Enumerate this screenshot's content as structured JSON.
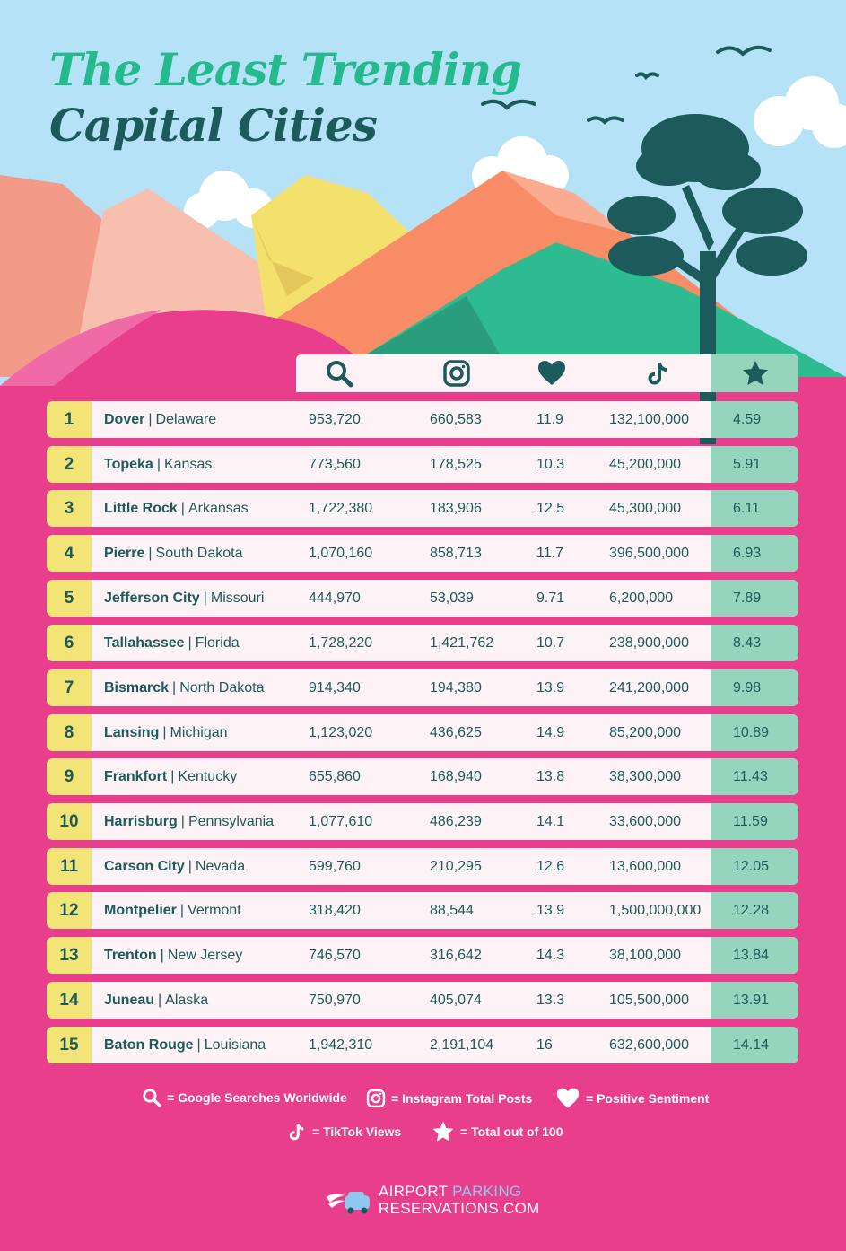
{
  "title": {
    "line1": "The Least Trending",
    "line2": "Capital Cities"
  },
  "header_icons": [
    "search-icon",
    "instagram-icon",
    "heart-icon",
    "tiktok-icon",
    "star-icon"
  ],
  "colors": {
    "sky": "#b5e2f7",
    "pink_background": "#e83e8c",
    "rank_yellow": "#f3e477",
    "score_green": "#96d4bd",
    "row_background": "#fdf3f6",
    "title_green": "#25b98e",
    "title_dark": "#1c5a5c"
  },
  "rows": [
    {
      "rank": "1",
      "city": "Dover",
      "state": "Delaware",
      "searches": "953,720",
      "instagram": "660,583",
      "sentiment": "11.9",
      "tiktok": "132,100,000",
      "score": "4.59"
    },
    {
      "rank": "2",
      "city": "Topeka",
      "state": "Kansas",
      "searches": "773,560",
      "instagram": "178,525",
      "sentiment": "10.3",
      "tiktok": "45,200,000",
      "score": "5.91"
    },
    {
      "rank": "3",
      "city": "Little Rock",
      "state": "Arkansas",
      "searches": "1,722,380",
      "instagram": "183,906",
      "sentiment": "12.5",
      "tiktok": "45,300,000",
      "score": "6.11"
    },
    {
      "rank": "4",
      "city": "Pierre",
      "state": "South Dakota",
      "searches": "1,070,160",
      "instagram": "858,713",
      "sentiment": "11.7",
      "tiktok": "396,500,000",
      "score": "6.93"
    },
    {
      "rank": "5",
      "city": "Jefferson City",
      "state": "Missouri",
      "searches": "444,970",
      "instagram": "53,039",
      "sentiment": "9.71",
      "tiktok": "6,200,000",
      "score": "7.89"
    },
    {
      "rank": "6",
      "city": "Tallahassee",
      "state": "Florida",
      "searches": "1,728,220",
      "instagram": "1,421,762",
      "sentiment": "10.7",
      "tiktok": "238,900,000",
      "score": "8.43"
    },
    {
      "rank": "7",
      "city": "Bismarck",
      "state": "North Dakota",
      "searches": "914,340",
      "instagram": "194,380",
      "sentiment": "13.9",
      "tiktok": "241,200,000",
      "score": "9.98"
    },
    {
      "rank": "8",
      "city": "Lansing",
      "state": "Michigan",
      "searches": "1,123,020",
      "instagram": "436,625",
      "sentiment": "14.9",
      "tiktok": "85,200,000",
      "score": "10.89"
    },
    {
      "rank": "9",
      "city": "Frankfort",
      "state": "Kentucky",
      "searches": "655,860",
      "instagram": "168,940",
      "sentiment": "13.8",
      "tiktok": "38,300,000",
      "score": "11.43"
    },
    {
      "rank": "10",
      "city": "Harrisburg",
      "state": "Pennsylvania",
      "searches": "1,077,610",
      "instagram": "486,239",
      "sentiment": "14.1",
      "tiktok": "33,600,000",
      "score": "11.59"
    },
    {
      "rank": "11",
      "city": "Carson City",
      "state": "Nevada",
      "searches": "599,760",
      "instagram": "210,295",
      "sentiment": "12.6",
      "tiktok": "13,600,000",
      "score": "12.05"
    },
    {
      "rank": "12",
      "city": "Montpelier",
      "state": "Vermont",
      "searches": "318,420",
      "instagram": "88,544",
      "sentiment": "13.9",
      "tiktok": "1,500,000,000",
      "score": "12.28"
    },
    {
      "rank": "13",
      "city": "Trenton",
      "state": "New Jersey",
      "searches": "746,570",
      "instagram": "316,642",
      "sentiment": "14.3",
      "tiktok": "38,100,000",
      "score": "13.84"
    },
    {
      "rank": "14",
      "city": "Juneau",
      "state": "Alaska",
      "searches": "750,970",
      "instagram": "405,074",
      "sentiment": "13.3",
      "tiktok": "105,500,000",
      "score": "13.91"
    },
    {
      "rank": "15",
      "city": "Baton Rouge",
      "state": "Louisiana",
      "searches": "1,942,310",
      "instagram": "2,191,104",
      "sentiment": "16",
      "tiktok": "632,600,000",
      "score": "14.14"
    }
  ],
  "legend": {
    "search": "= Google Searches Worldwide",
    "instagram": "= Instagram Total Posts",
    "heart": "= Positive Sentiment",
    "tiktok": "= TikTok Views",
    "star": "= Total out of 100"
  },
  "logo": {
    "part1": "AIRPORT ",
    "part2": "PARKING",
    "line2": "RESERVATIONS.COM"
  },
  "separator": "|"
}
